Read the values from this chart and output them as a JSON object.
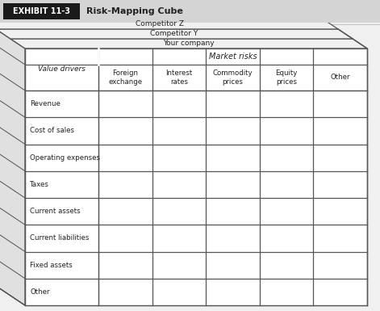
{
  "title_box_text": "EXHIBIT 11-3",
  "title_text": "Risk-Mapping Cube",
  "header_bg": "#d4d4d4",
  "title_bg": "#1a1a1a",
  "title_fg": "#ffffff",
  "border_color": "#555555",
  "font_color": "#222222",
  "competitor_labels": [
    "Competitor Z",
    "Competitor Y",
    "Your company"
  ],
  "market_risks_label": "Market risks",
  "column_headers": [
    "Foreign\nexchange",
    "Interest\nrates",
    "Commodity\nprices",
    "Equity\nprices",
    "Other"
  ],
  "value_drivers_label": "Value drivers",
  "row_labels": [
    "Revenue",
    "Cost of sales",
    "Operating expenses",
    "Taxes",
    "Current assets",
    "Current liabilities",
    "Fixed assets",
    "Other"
  ],
  "fig_bg": "#f0f0f0",
  "table_face": "#ffffff",
  "side_face": "#e0e0e0",
  "top_face": "#f0f0f0"
}
